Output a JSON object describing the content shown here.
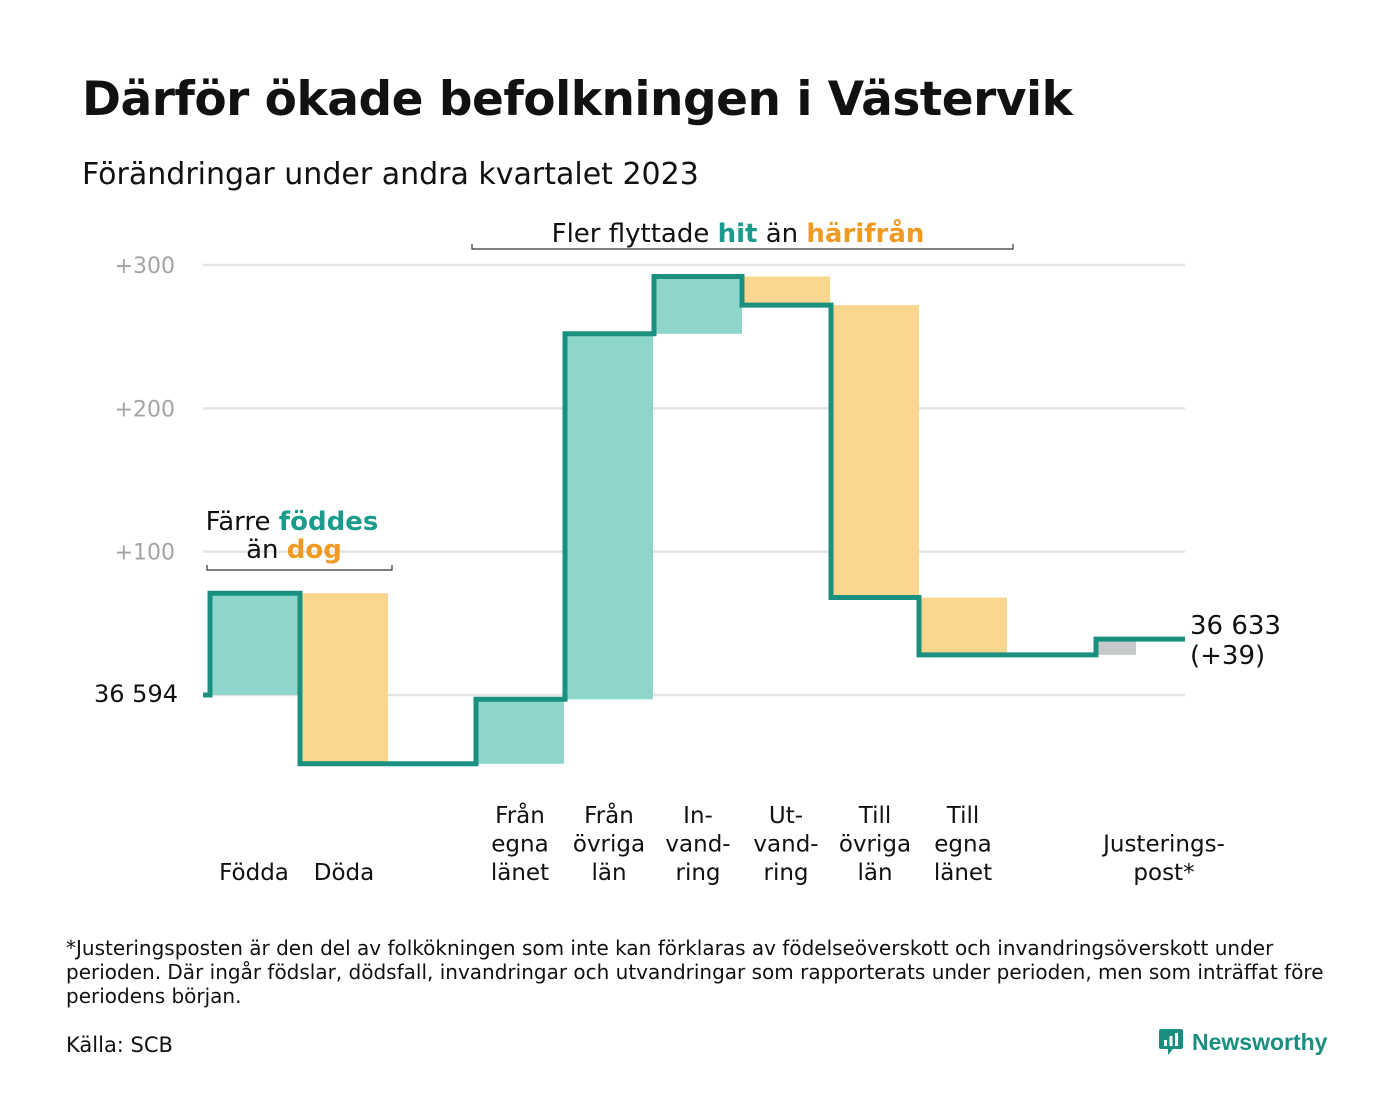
{
  "title": "Därför ökade befolkningen i Västervik",
  "subtitle": "Förändringar under andra kvartalet 2023",
  "footnote": "*Justeringsposten är den del av folkökningen som inte kan förklaras av födelseöverskott och invandringsöverskott under perioden. Där ingår födslar, dödsfall, invandringar och utvandringar som rapporterats under perioden, men som inträffat före periodens början.",
  "source": "Källa: SCB",
  "brand": {
    "name": "Newsworthy",
    "icon": "newsworthy-logo-icon",
    "color": "#1a8f80"
  },
  "colors": {
    "increase": "#8ed5cb",
    "decrease": "#fad68f",
    "adjustment": "#c6c9c9",
    "line": "#1a9080",
    "hit": "#1a9b8c",
    "from": "#f09a24",
    "grid": "#e3e3e3",
    "tick": "#a4a4a4"
  },
  "annotations": {
    "births": {
      "prefix": "Färre ",
      "hl1": "föddes",
      "line2_prefix": "än ",
      "hl2": "dog"
    },
    "moves": {
      "prefix": "Fler flyttade ",
      "hl1": "hit",
      "mid": " än ",
      "hl2": "härifrån"
    }
  },
  "chart_data": {
    "type": "waterfall",
    "start_value": 36594,
    "start_label": "36 594",
    "end_label": "36 633",
    "end_change_label": "(+39)",
    "yticks": [
      {
        "value": 100,
        "label": "+100"
      },
      {
        "value": 200,
        "label": "+200"
      },
      {
        "value": 300,
        "label": "+300"
      }
    ],
    "ylim": [
      -60,
      300
    ],
    "grid": true,
    "steps": [
      {
        "key": "fodda",
        "label": [
          "Födda"
        ],
        "change": 71,
        "kind": "increase"
      },
      {
        "key": "doda",
        "label": [
          "Döda"
        ],
        "change": -119,
        "kind": "decrease"
      },
      {
        "key": "fran-egna-lanet",
        "label": [
          "Från",
          "egna",
          "länet"
        ],
        "change": 45,
        "kind": "increase"
      },
      {
        "key": "fran-ovriga-lan",
        "label": [
          "Från",
          "övriga",
          "län"
        ],
        "change": 255,
        "kind": "increase"
      },
      {
        "key": "invandring",
        "label": [
          "In-",
          "vand-",
          "ring"
        ],
        "change": 40,
        "kind": "increase"
      },
      {
        "key": "utvandring",
        "label": [
          "Ut-",
          "vand-",
          "ring"
        ],
        "change": -20,
        "kind": "decrease"
      },
      {
        "key": "till-ovriga-lan",
        "label": [
          "Till",
          "övriga",
          "län"
        ],
        "change": -204,
        "kind": "decrease"
      },
      {
        "key": "till-egna-lanet",
        "label": [
          "Till",
          "egna",
          "länet"
        ],
        "change": -40,
        "kind": "decrease"
      },
      {
        "key": "justeringspost",
        "label": [
          "Justerings-",
          "post*"
        ],
        "change": 11,
        "kind": "adjustment"
      }
    ]
  }
}
